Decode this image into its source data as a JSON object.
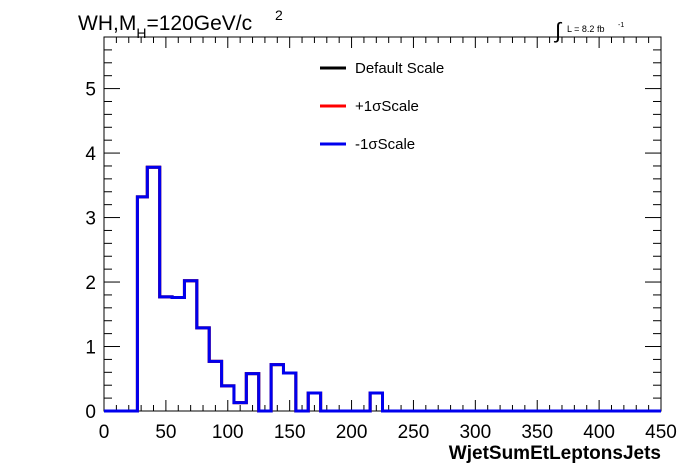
{
  "chart_data": {
    "type": "line",
    "title_parts": {
      "main": "WH,M",
      "sub": "H",
      "rest": "=120GeV/c",
      "sup": "2"
    },
    "lumi_parts": {
      "integral": "∫",
      "text": "L = 8.2 fb",
      "sup": "-1"
    },
    "xlabel": "WjetSumEtLeptonsJets",
    "ylabel": "",
    "xlim": [
      0,
      450
    ],
    "ylim": [
      0,
      5.8
    ],
    "x_ticks": [
      "0",
      "50",
      "100",
      "150",
      "200",
      "250",
      "300",
      "350",
      "400",
      "450"
    ],
    "y_ticks": [
      "0",
      "1",
      "2",
      "3",
      "4",
      "5"
    ],
    "bin_edges": [
      0,
      10,
      20,
      27,
      35,
      45,
      55,
      65,
      75,
      85,
      95,
      105,
      115,
      125,
      135,
      145,
      155,
      165,
      175,
      185,
      195,
      205,
      215,
      225,
      450
    ],
    "series": [
      {
        "name": "Default Scale",
        "color": "#000000",
        "values": [
          0,
          0,
          0,
          3.32,
          3.78,
          1.77,
          1.76,
          2.02,
          1.29,
          0.77,
          0.39,
          0.13,
          0.58,
          0.0,
          0.72,
          0.59,
          0.0,
          0.28,
          0.0,
          0.0,
          0.0,
          0.0,
          0.28,
          0.0
        ]
      },
      {
        "name": "+1σScale",
        "color": "#ff0000",
        "values": [
          0,
          0,
          0,
          3.32,
          3.78,
          1.77,
          1.76,
          2.02,
          1.29,
          0.77,
          0.39,
          0.13,
          0.58,
          0.0,
          0.72,
          0.59,
          0.0,
          0.28,
          0.0,
          0.0,
          0.0,
          0.0,
          0.28,
          0.0
        ]
      },
      {
        "name": "-1σScale",
        "color": "#0000ee",
        "values": [
          0,
          0,
          0,
          3.32,
          3.78,
          1.77,
          1.76,
          2.02,
          1.29,
          0.77,
          0.39,
          0.13,
          0.58,
          0.0,
          0.72,
          0.59,
          0.0,
          0.28,
          0.0,
          0.0,
          0.0,
          0.0,
          0.28,
          0.0
        ]
      }
    ],
    "legend_position": "top-center",
    "grid": false
  }
}
